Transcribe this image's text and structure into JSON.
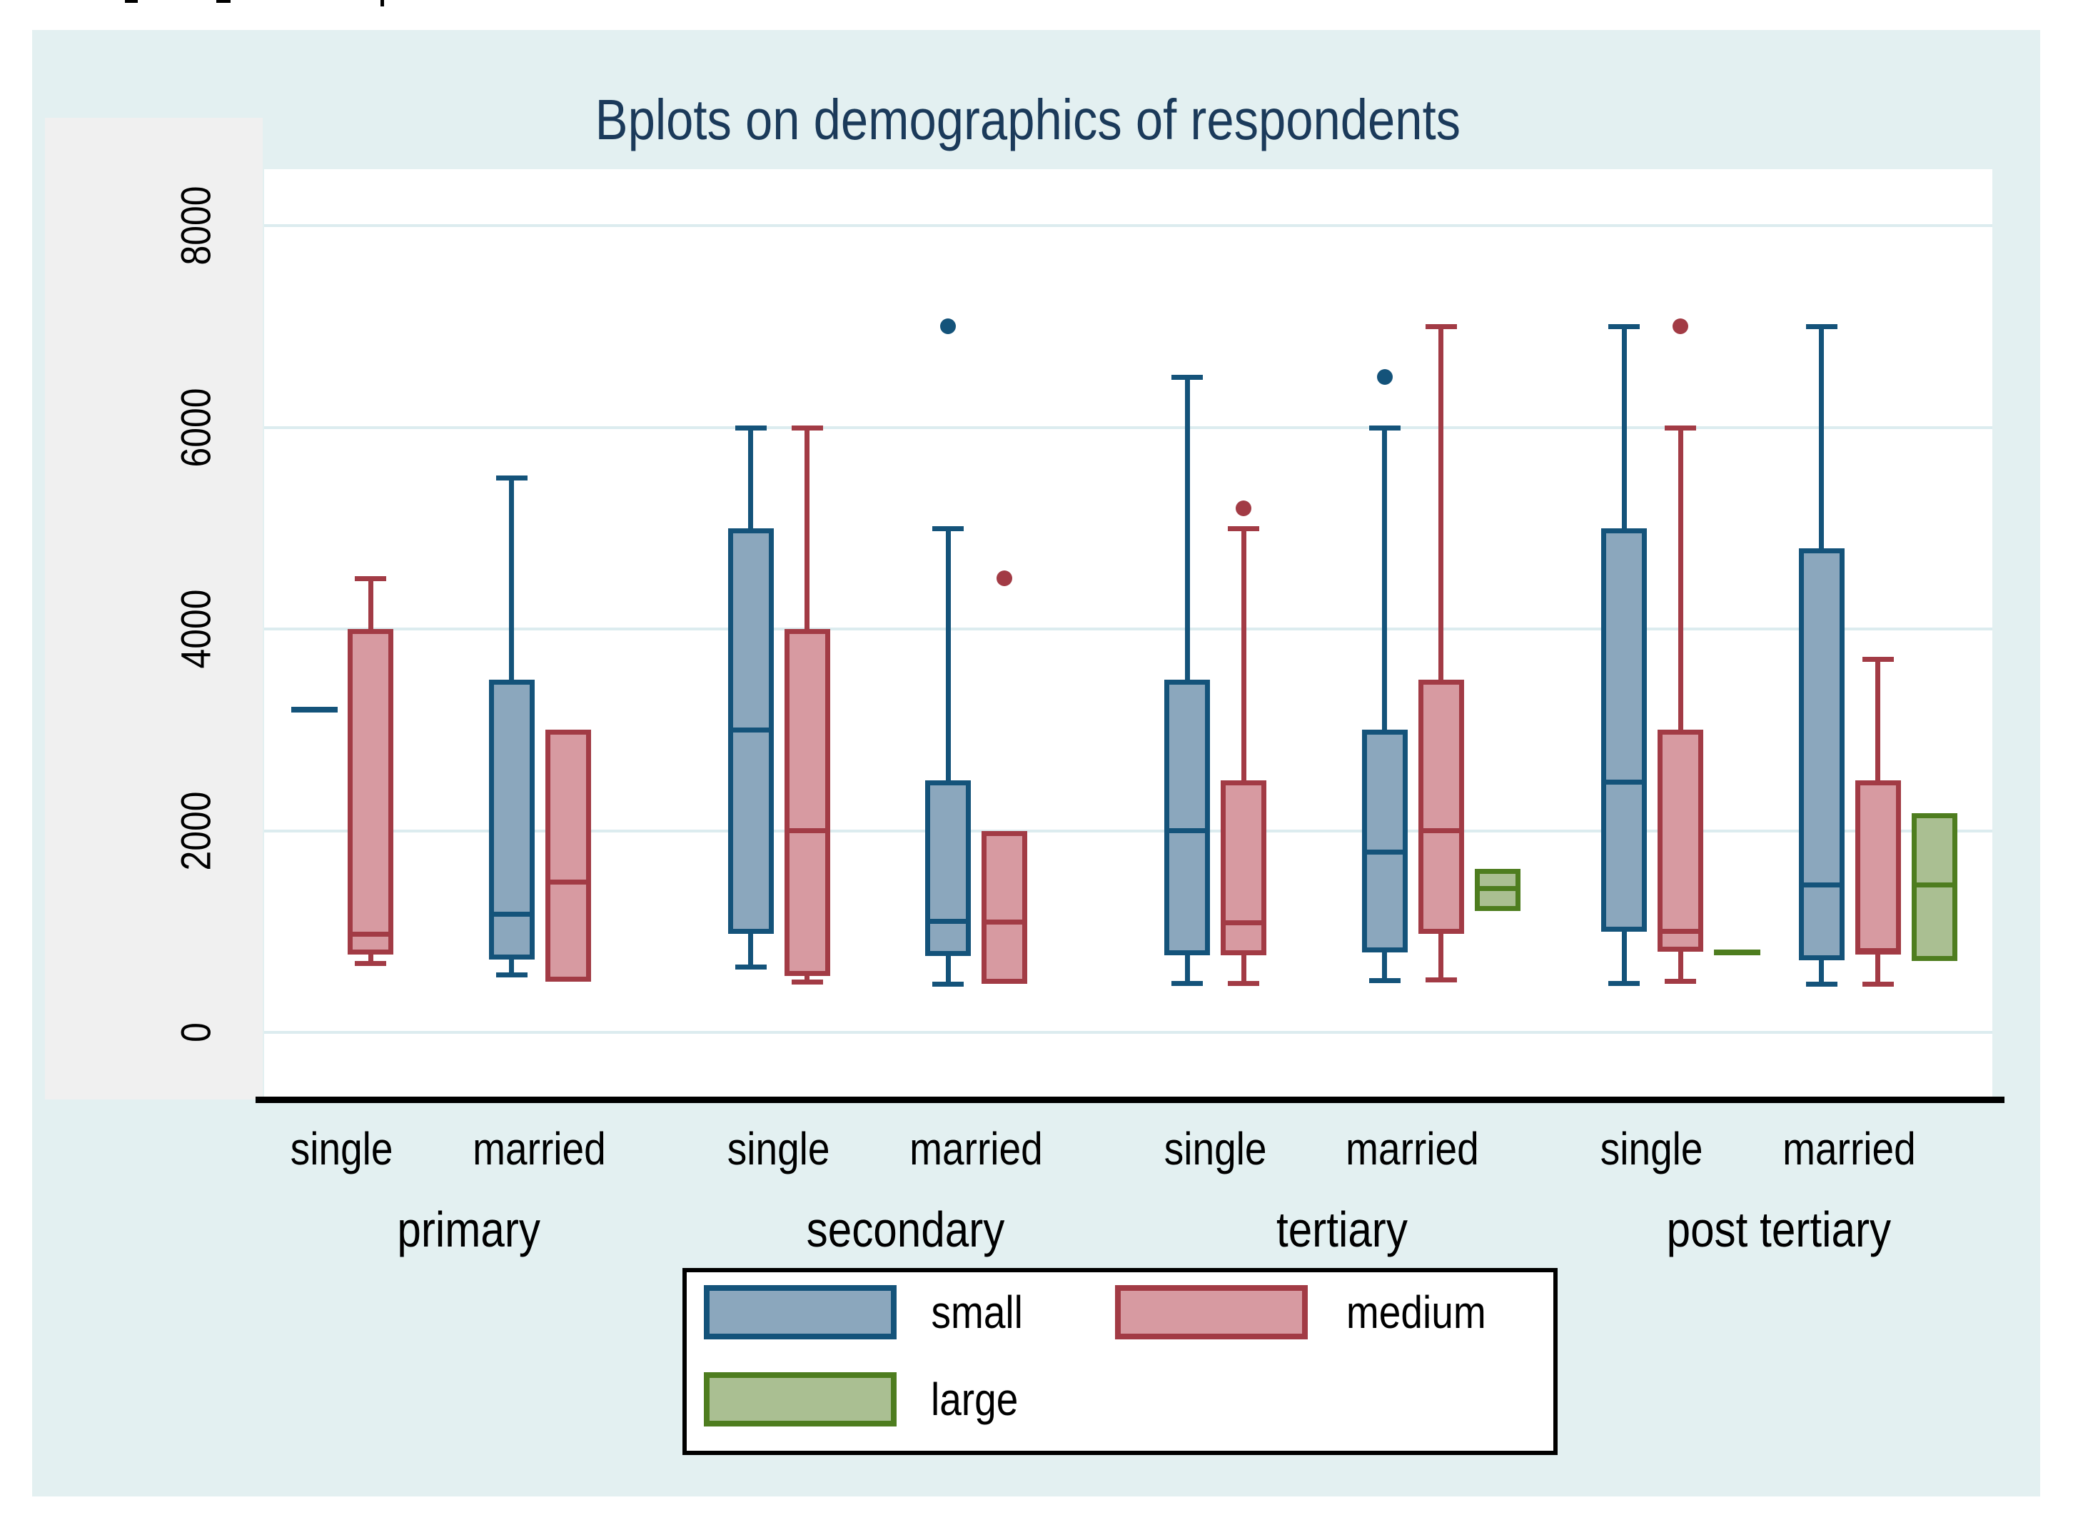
{
  "title": {
    "text": "Bplots on demographics of respondents"
  },
  "legend": {
    "items": [
      {
        "label": "small",
        "series": "small"
      },
      {
        "label": "medium",
        "series": "medium"
      },
      {
        "label": "large",
        "series": "large"
      }
    ]
  },
  "chart_data": {
    "type": "box",
    "title": "Bplots on demographics of respondents",
    "ylabel": "",
    "xlabel": "",
    "ylim": [
      0,
      8560
    ],
    "y_ticks": [
      0,
      2000,
      4000,
      6000,
      8000
    ],
    "grid": "horizontal",
    "legend_position": "bottom",
    "series_colors": {
      "small": {
        "fill": "#8ba7bd",
        "line": "#14537a"
      },
      "medium": {
        "fill": "#d79aa1",
        "line": "#a23b45"
      },
      "large": {
        "fill": "#aabf92",
        "line": "#4e7d1f"
      }
    },
    "groups": [
      {
        "education": "primary",
        "marital": "single",
        "boxes": [
          {
            "series": "small",
            "dash": 3200
          },
          {
            "series": "medium",
            "low": 690,
            "q1": 775,
            "median": 975,
            "q3": 4000,
            "high": 4500
          }
        ]
      },
      {
        "education": "primary",
        "marital": "married",
        "boxes": [
          {
            "series": "small",
            "low": 575,
            "q1": 725,
            "median": 1175,
            "q3": 3500,
            "high": 5500
          },
          {
            "series": "medium",
            "q1": 500,
            "median": 1490,
            "q3": 3000
          }
        ]
      },
      {
        "education": "secondary",
        "marital": "single",
        "boxes": [
          {
            "series": "small",
            "low": 650,
            "q1": 975,
            "median": 3000,
            "q3": 5000,
            "high": 6000
          },
          {
            "series": "medium",
            "low": 500,
            "q1": 560,
            "median": 2000,
            "q3": 4000,
            "high": 6000
          }
        ]
      },
      {
        "education": "secondary",
        "marital": "married",
        "boxes": [
          {
            "series": "small",
            "low": 480,
            "q1": 755,
            "median": 1100,
            "q3": 2500,
            "high": 5000,
            "outliers": [
              7000
            ]
          },
          {
            "series": "medium",
            "q1": 480,
            "median": 1095,
            "q3": 2000,
            "outliers": [
              4500
            ]
          }
        ]
      },
      {
        "education": "tertiary",
        "marital": "single",
        "boxes": [
          {
            "series": "small",
            "low": 490,
            "q1": 765,
            "median": 2000,
            "q3": 3500,
            "high": 6500
          },
          {
            "series": "medium",
            "low": 490,
            "q1": 765,
            "median": 1085,
            "q3": 2500,
            "high": 5000,
            "outliers": [
              5200
            ]
          }
        ]
      },
      {
        "education": "tertiary",
        "marital": "married",
        "boxes": [
          {
            "series": "small",
            "low": 520,
            "q1": 790,
            "median": 1790,
            "q3": 3000,
            "high": 6000,
            "outliers": [
              6500
            ]
          },
          {
            "series": "medium",
            "low": 525,
            "q1": 975,
            "median": 2000,
            "q3": 3500,
            "high": 7000
          },
          {
            "series": "large",
            "q1": 1200,
            "median": 1430,
            "q3": 1620
          }
        ]
      },
      {
        "education": "post tertiary",
        "marital": "single",
        "boxes": [
          {
            "series": "small",
            "low": 490,
            "q1": 1000,
            "median": 2480,
            "q3": 5000,
            "high": 7000
          },
          {
            "series": "medium",
            "low": 510,
            "q1": 800,
            "median": 1000,
            "q3": 3000,
            "high": 6000,
            "outliers": [
              7000
            ]
          },
          {
            "series": "large",
            "dash": 795
          }
        ]
      },
      {
        "education": "post tertiary",
        "marital": "married",
        "boxes": [
          {
            "series": "small",
            "low": 480,
            "q1": 715,
            "median": 1465,
            "q3": 4800,
            "high": 7000
          },
          {
            "series": "medium",
            "low": 480,
            "q1": 770,
            "median": 810,
            "q3": 2500,
            "high": 3700
          },
          {
            "series": "large",
            "q1": 710,
            "median": 1460,
            "q3": 2170
          }
        ]
      }
    ],
    "x_group_labels": [
      "primary",
      "secondary",
      "tertiary",
      "post tertiary"
    ],
    "x_pair_labels": [
      "single",
      "married"
    ]
  }
}
